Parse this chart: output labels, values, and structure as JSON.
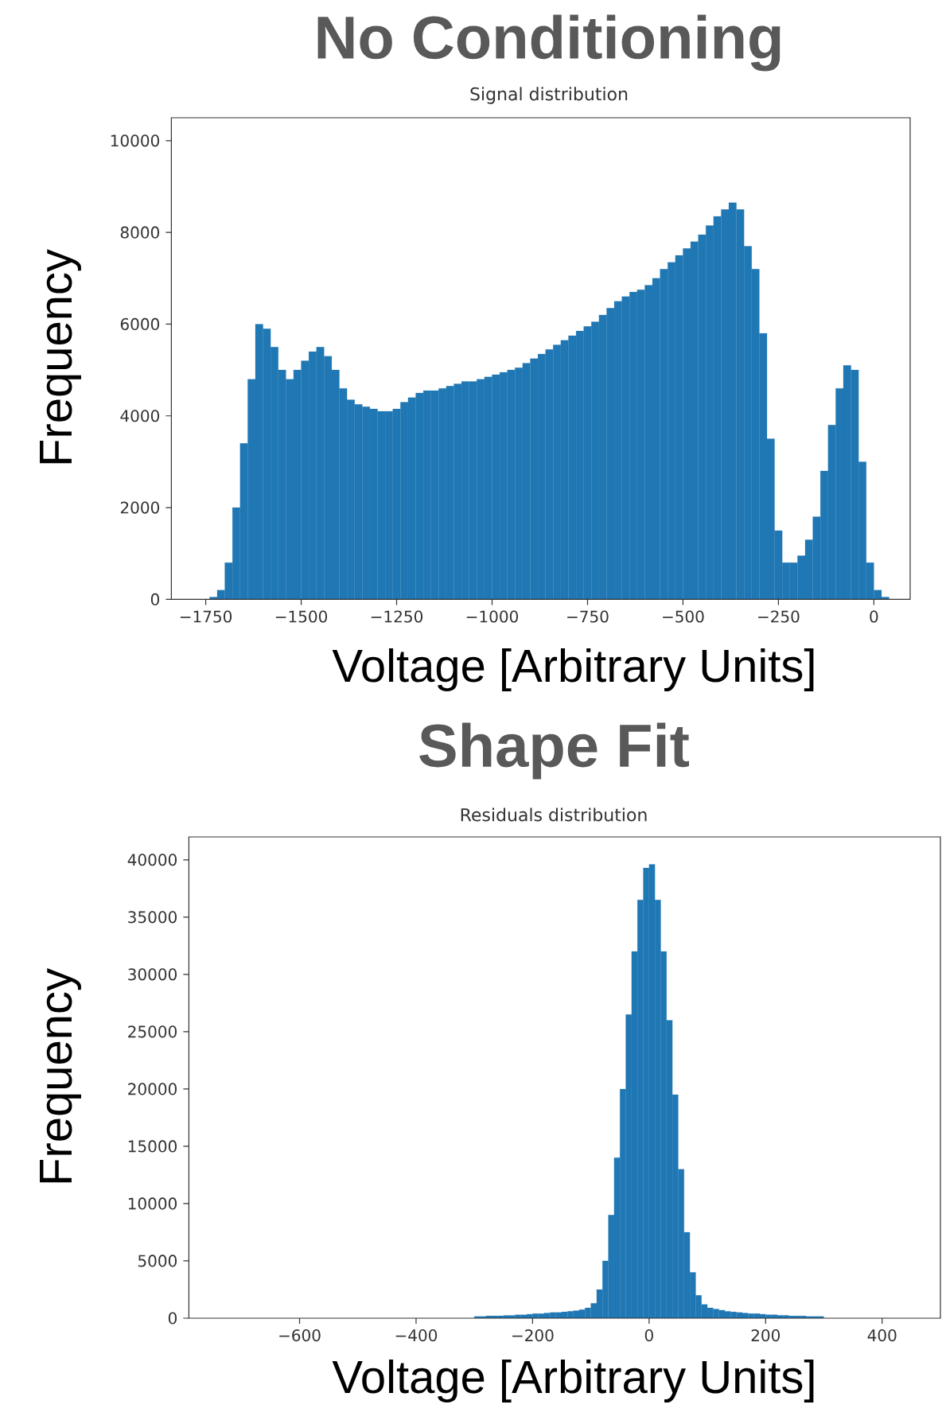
{
  "chart_data": [
    {
      "type": "histogram",
      "title": "No Conditioning",
      "subtitle": "Signal distribution",
      "xlabel": "Voltage [Arbitrary Units]",
      "ylabel": "Frequency",
      "color": "#1f77b4",
      "bins": [
        -1740,
        -1720,
        -1700,
        -1680,
        -1660,
        -1640,
        -1620,
        -1600,
        -1580,
        -1560,
        -1540,
        -1520,
        -1500,
        -1480,
        -1460,
        -1440,
        -1420,
        -1400,
        -1380,
        -1360,
        -1340,
        -1320,
        -1300,
        -1280,
        -1260,
        -1240,
        -1220,
        -1200,
        -1180,
        -1160,
        -1140,
        -1120,
        -1100,
        -1080,
        -1060,
        -1040,
        -1020,
        -1000,
        -980,
        -960,
        -940,
        -920,
        -900,
        -880,
        -860,
        -840,
        -820,
        -800,
        -780,
        -760,
        -740,
        -720,
        -700,
        -680,
        -660,
        -640,
        -620,
        -600,
        -580,
        -560,
        -540,
        -520,
        -500,
        -480,
        -460,
        -440,
        -420,
        -400,
        -380,
        -360,
        -340,
        -320,
        -300,
        -280,
        -260,
        -240,
        -220,
        -200,
        -180,
        -160,
        -140,
        -120,
        -100,
        -80,
        -60,
        -40,
        -20,
        0,
        20,
        40
      ],
      "values": [
        50,
        200,
        800,
        2000,
        3400,
        4800,
        6000,
        5900,
        5500,
        5000,
        4800,
        5000,
        5200,
        5400,
        5500,
        5300,
        5000,
        4600,
        4350,
        4250,
        4200,
        4150,
        4100,
        4100,
        4150,
        4300,
        4400,
        4500,
        4550,
        4550,
        4600,
        4650,
        4700,
        4750,
        4750,
        4800,
        4850,
        4900,
        4950,
        5000,
        5050,
        5150,
        5250,
        5350,
        5450,
        5550,
        5650,
        5750,
        5850,
        5950,
        6050,
        6200,
        6350,
        6500,
        6600,
        6700,
        6750,
        6850,
        7000,
        7200,
        7350,
        7500,
        7650,
        7800,
        7950,
        8150,
        8350,
        8500,
        8650,
        8500,
        7700,
        7200,
        5800,
        3500,
        1500,
        800,
        800,
        950,
        1300,
        1800,
        2800,
        3800,
        4600,
        5100,
        5000,
        3000,
        800,
        200,
        50
      ],
      "xlim": [
        -1840,
        95
      ],
      "ylim": [
        0,
        10500
      ],
      "xticks": [
        {
          "value": -1750,
          "label": "−1750"
        },
        {
          "value": -1500,
          "label": "−1500"
        },
        {
          "value": -1250,
          "label": "−1250"
        },
        {
          "value": -1000,
          "label": "−1000"
        },
        {
          "value": -750,
          "label": "−750"
        },
        {
          "value": -500,
          "label": "−500"
        },
        {
          "value": -250,
          "label": "−250"
        },
        0
      ],
      "yticks": [
        0,
        2000,
        4000,
        6000,
        8000,
        10000
      ]
    },
    {
      "type": "histogram",
      "title": "Shape Fit",
      "subtitle": "Residuals distribution",
      "xlabel": "Voltage [Arbitrary Units]",
      "ylabel": "Frequency",
      "color": "#1f77b4",
      "bins": [
        -300,
        -290,
        -280,
        -270,
        -260,
        -250,
        -240,
        -230,
        -220,
        -210,
        -200,
        -190,
        -180,
        -170,
        -160,
        -150,
        -140,
        -130,
        -120,
        -110,
        -100,
        -90,
        -80,
        -70,
        -60,
        -50,
        -40,
        -30,
        -20,
        -10,
        0,
        10,
        20,
        30,
        40,
        50,
        60,
        70,
        80,
        90,
        100,
        110,
        120,
        130,
        140,
        150,
        160,
        170,
        180,
        190,
        200,
        210,
        220,
        230,
        240,
        250,
        260,
        270,
        280,
        290,
        300
      ],
      "values": [
        150,
        150,
        200,
        200,
        200,
        250,
        250,
        300,
        300,
        350,
        400,
        400,
        450,
        500,
        500,
        550,
        600,
        650,
        750,
        900,
        1300,
        2500,
        5000,
        9000,
        14000,
        20000,
        26500,
        32000,
        36500,
        39300,
        39600,
        36500,
        32000,
        26000,
        19500,
        13000,
        7500,
        4000,
        2000,
        1200,
        900,
        800,
        700,
        600,
        550,
        500,
        450,
        400,
        400,
        350,
        300,
        300,
        250,
        250,
        200,
        200,
        200,
        150,
        150,
        150
      ],
      "xlim": [
        -790,
        500
      ],
      "ylim": [
        0,
        42000
      ],
      "xticks": [
        {
          "value": -600,
          "label": "−600"
        },
        {
          "value": -400,
          "label": "−400"
        },
        {
          "value": -200,
          "label": "−200"
        },
        0,
        200,
        400
      ],
      "yticks": [
        0,
        5000,
        10000,
        15000,
        20000,
        25000,
        30000,
        35000,
        40000
      ]
    }
  ]
}
